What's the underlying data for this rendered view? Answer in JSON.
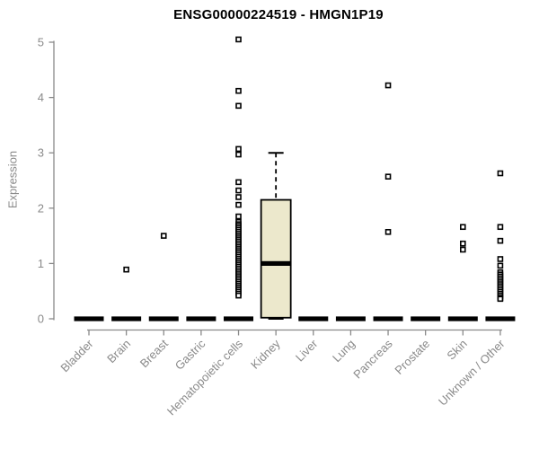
{
  "colors": {
    "axis": "#8a8a8a",
    "text": "#8a8a8a",
    "box_fill": "#ece8cc",
    "box_border": "#000000",
    "outlier": "#000000",
    "background": "#ffffff"
  },
  "chart_data": {
    "type": "boxplot",
    "title": "ENSG00000224519 - HMGN1P19",
    "xlabel": "",
    "ylabel": "Expression",
    "ylim": [
      0,
      5
    ],
    "yticks": [
      0,
      1,
      2,
      3,
      4,
      5
    ],
    "grid": false,
    "legend": false,
    "categories": [
      "Bladder",
      "Brain",
      "Breast",
      "Gastric",
      "Hematopoietic cells",
      "Kidney",
      "Liver",
      "Lung",
      "Pancreas",
      "Prostate",
      "Skin",
      "Unknown / Other"
    ],
    "series": [
      {
        "name": "Bladder",
        "stats": {
          "low": 0,
          "q1": 0,
          "median": 0,
          "q3": 0,
          "high": 0
        },
        "outliers": []
      },
      {
        "name": "Brain",
        "stats": {
          "low": 0,
          "q1": 0,
          "median": 0,
          "q3": 0,
          "high": 0
        },
        "outliers": [
          0.89
        ]
      },
      {
        "name": "Breast",
        "stats": {
          "low": 0,
          "q1": 0,
          "median": 0,
          "q3": 0,
          "high": 0
        },
        "outliers": [
          1.5
        ]
      },
      {
        "name": "Gastric",
        "stats": {
          "low": 0,
          "q1": 0,
          "median": 0,
          "q3": 0,
          "high": 0
        },
        "outliers": []
      },
      {
        "name": "Hematopoietic cells",
        "stats": {
          "low": 0,
          "q1": 0,
          "median": 0,
          "q3": 0,
          "high": 0
        },
        "outliers": [
          5.05,
          4.12,
          3.85,
          3.07,
          2.97,
          2.47,
          2.32,
          2.2,
          2.06,
          1.85,
          1.75,
          1.71,
          1.68,
          1.645,
          1.61,
          1.575,
          1.54,
          1.505,
          1.47,
          1.435,
          1.4,
          1.365,
          1.33,
          1.295,
          1.26,
          1.225,
          1.19,
          1.155,
          1.12,
          1.085,
          1.05,
          1.015,
          0.98,
          0.945,
          0.91,
          0.875,
          0.84,
          0.805,
          0.77,
          0.735,
          0.7,
          0.665,
          0.63,
          0.595,
          0.56,
          0.525,
          0.49,
          0.455,
          0.42
        ]
      },
      {
        "name": "Kidney",
        "stats": {
          "low": 0,
          "q1": 0.02,
          "median": 1.0,
          "q3": 2.15,
          "high": 3.0
        },
        "outliers": []
      },
      {
        "name": "Liver",
        "stats": {
          "low": 0,
          "q1": 0,
          "median": 0,
          "q3": 0,
          "high": 0
        },
        "outliers": []
      },
      {
        "name": "Lung",
        "stats": {
          "low": 0,
          "q1": 0,
          "median": 0,
          "q3": 0,
          "high": 0
        },
        "outliers": []
      },
      {
        "name": "Pancreas",
        "stats": {
          "low": 0,
          "q1": 0,
          "median": 0,
          "q3": 0,
          "high": 0
        },
        "outliers": [
          4.22,
          2.57,
          1.57
        ]
      },
      {
        "name": "Prostate",
        "stats": {
          "low": 0,
          "q1": 0,
          "median": 0,
          "q3": 0,
          "high": 0
        },
        "outliers": []
      },
      {
        "name": "Skin",
        "stats": {
          "low": 0,
          "q1": 0,
          "median": 0,
          "q3": 0,
          "high": 0
        },
        "outliers": [
          1.66,
          1.36,
          1.25
        ]
      },
      {
        "name": "Unknown / Other",
        "stats": {
          "low": 0,
          "q1": 0,
          "median": 0,
          "q3": 0,
          "high": 0
        },
        "outliers": [
          2.63,
          1.66,
          1.41,
          1.08,
          0.96,
          0.84,
          0.8,
          0.765,
          0.73,
          0.695,
          0.66,
          0.625,
          0.59,
          0.555,
          0.52,
          0.485,
          0.45,
          0.415,
          0.38,
          0.36
        ]
      }
    ]
  }
}
